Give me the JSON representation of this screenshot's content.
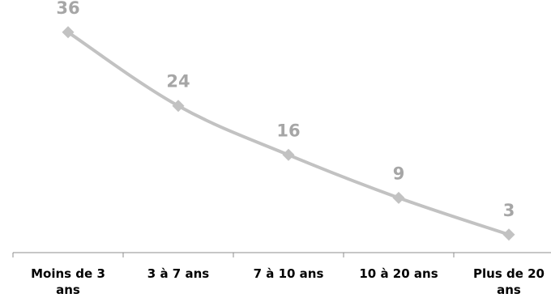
{
  "chart_data": {
    "type": "line",
    "categories": [
      "Moins de 3 ans",
      "3 à 7 ans",
      "7 à 10 ans",
      "10 à 20 ans",
      "Plus de 20 ans"
    ],
    "category_label_lines": [
      [
        "Moins de 3",
        "ans"
      ],
      [
        "3 à 7 ans"
      ],
      [
        "7 à 10 ans"
      ],
      [
        "10 à 20 ans"
      ],
      [
        "Plus de 20",
        "ans"
      ]
    ],
    "series": [
      {
        "values": [
          36,
          24,
          16,
          9,
          3
        ]
      }
    ],
    "data_labels": [
      "36",
      "24",
      "16",
      "9",
      "3"
    ],
    "ylim": [
      0,
      40
    ],
    "grid": false,
    "legend": "none",
    "colors": {
      "line": "#c2c2c2",
      "marker": "#c2c2c2",
      "data_label": "#a6a6a6",
      "axis": "#8c8c8c"
    },
    "marker": "diamond"
  }
}
